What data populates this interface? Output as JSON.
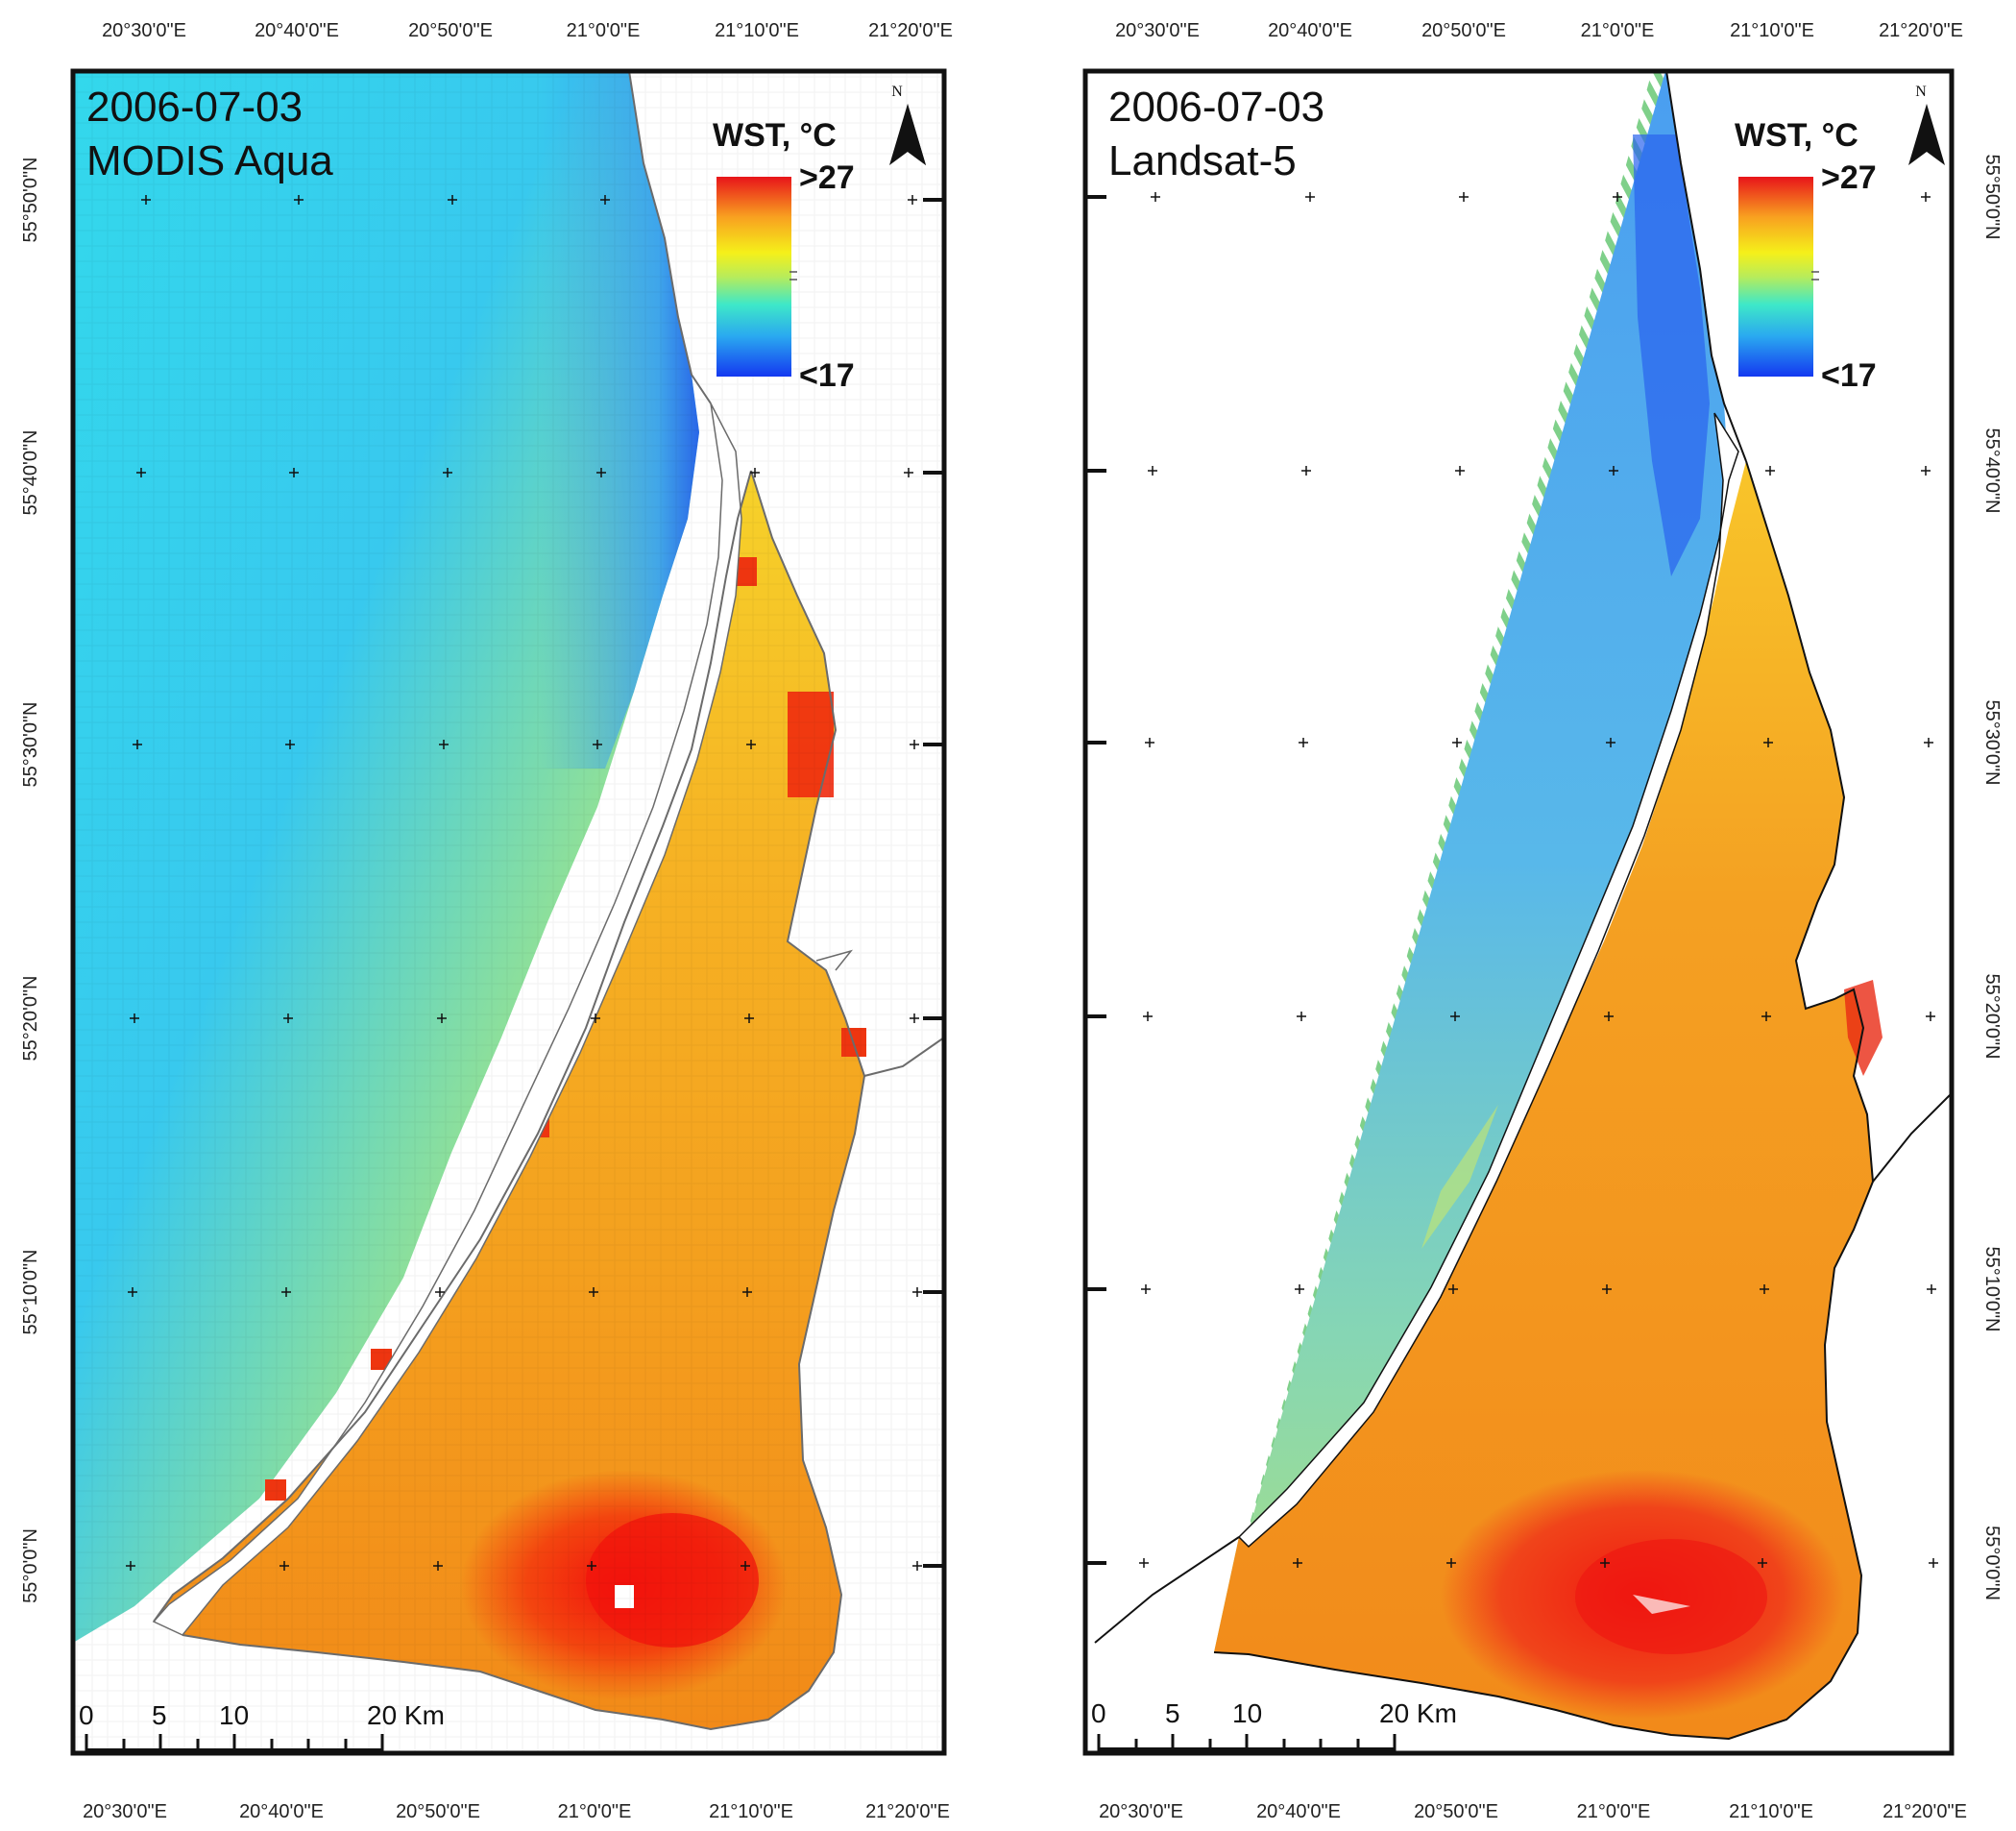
{
  "maps": [
    {
      "date": "2006-07-03",
      "sensor": "MODIS Aqua",
      "legend": {
        "title": "WST, °C",
        "max_label": ">27",
        "min_label": "<17"
      },
      "north": "N",
      "scale_labels": [
        "0",
        "5",
        "10",
        "20 Km"
      ],
      "lon_labels_top": [
        "20°30'0\"E",
        "20°40'0\"E",
        "20°50'0\"E",
        "21°0'0\"E",
        "21°10'0\"E",
        "21°20'0\"E"
      ],
      "lon_labels_bottom": [
        "20°30'0\"E",
        "20°40'0\"E",
        "20°50'0\"E",
        "21°0'0\"E",
        "21°10'0\"E",
        "21°20'0\"E"
      ],
      "lat_labels": [
        "55°50'0\"N",
        "55°40'0\"N",
        "55°30'0\"N",
        "55°20'0\"N",
        "55°10'0\"N",
        "55°0'0\"N"
      ]
    },
    {
      "date": "2006-07-03",
      "sensor": "Landsat-5",
      "legend": {
        "title": "WST, °C",
        "max_label": ">27",
        "min_label": "<17"
      },
      "north": "N",
      "scale_labels": [
        "0",
        "5",
        "10",
        "20 Km"
      ],
      "lon_labels_top": [
        "20°30'0\"E",
        "20°40'0\"E",
        "20°50'0\"E",
        "21°0'0\"E",
        "21°10'0\"E",
        "21°20'0\"E"
      ],
      "lon_labels_bottom": [
        "20°30'0\"E",
        "20°40'0\"E",
        "20°50'0\"E",
        "21°0'0\"E",
        "21°10'0\"E",
        "21°20'0\"E"
      ],
      "lat_labels": [
        "55°50'0\"N",
        "55°40'0\"N",
        "55°30'0\"N",
        "55°20'0\"N",
        "55°10'0\"N",
        "55°0'0\"N"
      ]
    }
  ],
  "colors": {
    "sea_modis": "#4fd6e4",
    "sea_landsat": "#6ab7ea",
    "lagoon_modis": "#f4b224",
    "lagoon_landsat": "#f39a1e",
    "hot": "#f21c0c",
    "cold": "#1e56f0"
  }
}
